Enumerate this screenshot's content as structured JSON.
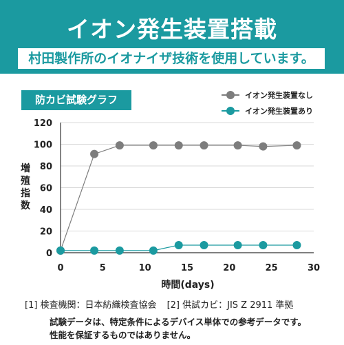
{
  "banner": {
    "title": "イオン発生装置搭載",
    "subtitle": "村田製作所のイオナイザ技術を使用しています。"
  },
  "chart_label": "防カビ試験グラフ",
  "legend": [
    {
      "name": "イオン発生装置なし",
      "color": "#7d7d7d"
    },
    {
      "name": "イオン発生装置あり",
      "color": "#1b9aa0"
    }
  ],
  "colors": {
    "accent": "#1b9aa0",
    "series_without": "#7d7d7d",
    "series_with": "#1b9aa0",
    "grid": "#d9d9d9"
  },
  "chart_data": {
    "type": "line",
    "title": "防カビ試験グラフ",
    "xlabel": "時間(days)",
    "ylabel": "増殖指数",
    "xlim": [
      0,
      30
    ],
    "ylim": [
      0,
      120
    ],
    "x_ticks": [
      0,
      5,
      10,
      15,
      20,
      25,
      30
    ],
    "y_ticks": [
      0,
      20,
      40,
      60,
      80,
      100,
      120
    ],
    "grid": "horizontal",
    "legend_position": "top-right",
    "series": [
      {
        "name": "イオン発生装置なし",
        "color": "#7d7d7d",
        "points": [
          [
            0,
            2
          ],
          [
            4,
            91
          ],
          [
            7,
            99
          ],
          [
            11,
            99
          ],
          [
            14,
            99
          ],
          [
            17,
            99
          ],
          [
            21,
            99
          ],
          [
            24,
            98
          ],
          [
            28,
            99
          ]
        ]
      },
      {
        "name": "イオン発生装置あり",
        "color": "#1b9aa0",
        "points": [
          [
            0,
            2
          ],
          [
            4,
            2
          ],
          [
            7,
            2
          ],
          [
            11,
            2
          ],
          [
            14,
            7
          ],
          [
            17,
            7
          ],
          [
            21,
            7
          ],
          [
            24,
            7
          ],
          [
            28,
            7
          ]
        ]
      }
    ]
  },
  "footnotes": {
    "ref1": "[1] 検査機関：日本紡織検査協会",
    "ref2": "[2] 供試カビ：JIS Z 2911 準拠",
    "note1": "試験データは、特定条件によるデバイス単体での参考データです。",
    "note2": "性能を保証するものではありません。"
  }
}
